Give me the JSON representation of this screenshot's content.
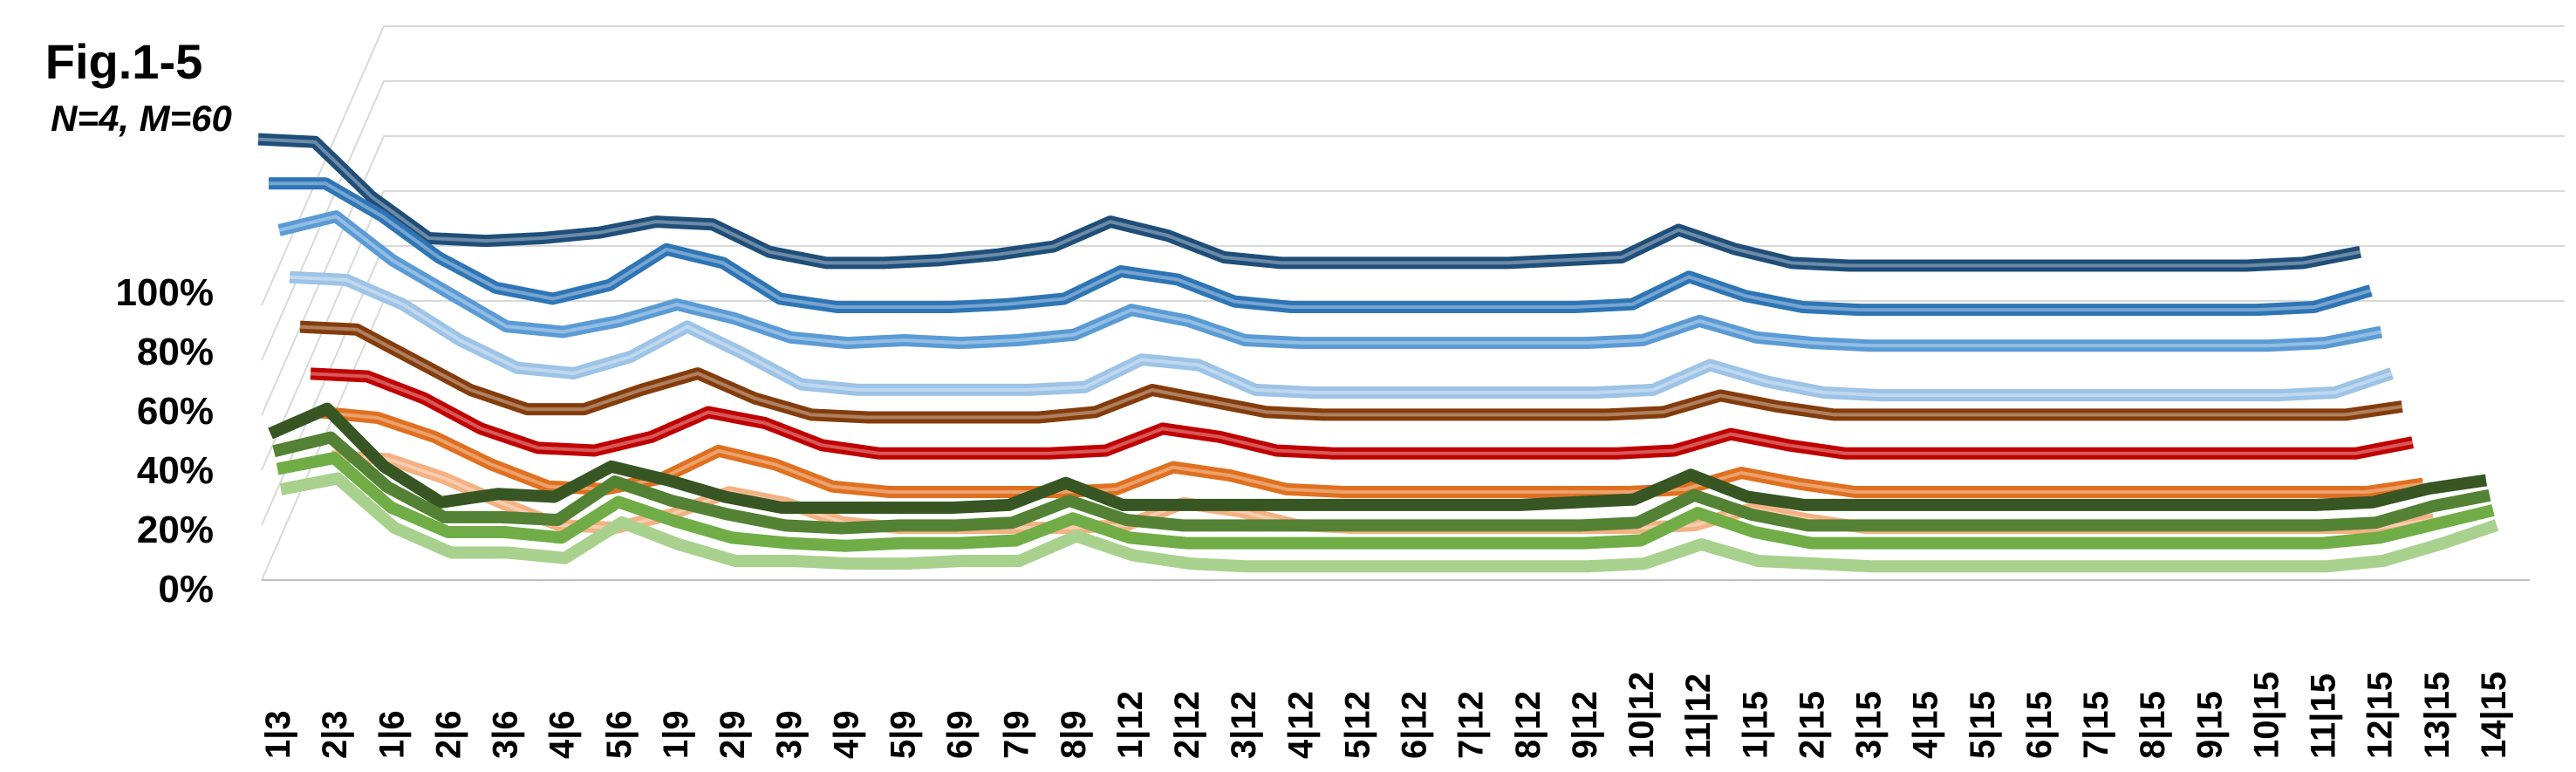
{
  "figure": {
    "title": "Fig.1-5",
    "subtitle": "N=4, M=60"
  },
  "chart_data": {
    "type": "line",
    "style": "3d-line",
    "title": "Fig.1-5",
    "subtitle": "N=4, M=60",
    "xlabel": "",
    "ylabel": "",
    "ylim": [
      0,
      100
    ],
    "yticks": [
      "0%",
      "20%",
      "40%",
      "60%",
      "80%",
      "100%"
    ],
    "grid": true,
    "legend": "none",
    "categories": [
      "1|3",
      "2|3",
      "1|6",
      "2|6",
      "3|6",
      "4|6",
      "5|6",
      "1|9",
      "2|9",
      "3|9",
      "4|9",
      "5|9",
      "6|9",
      "7|9",
      "8|9",
      "1|12",
      "2|12",
      "3|12",
      "4|12",
      "5|12",
      "6|12",
      "7|12",
      "8|12",
      "9|12",
      "10|12",
      "11|12",
      "1|15",
      "2|15",
      "3|15",
      "4|15",
      "5|15",
      "6|15",
      "7|15",
      "8|15",
      "9|15",
      "10|15",
      "11|15",
      "12|15",
      "13|15",
      "14|15"
    ],
    "series": [
      {
        "color": "#1f4e79",
        "values": [
          76,
          75,
          55,
          40,
          39,
          40,
          42,
          46,
          45,
          35,
          31,
          31,
          32,
          34,
          37,
          46,
          41,
          33,
          31,
          31,
          31,
          31,
          31,
          32,
          33,
          43,
          36,
          31,
          30,
          30,
          30,
          30,
          30,
          30,
          30,
          30,
          31,
          35,
          null,
          null
        ]
      },
      {
        "color": "#2e75b6",
        "values": [
          72,
          72,
          60,
          45,
          34,
          30,
          35,
          48,
          43,
          30,
          27,
          27,
          27,
          28,
          30,
          40,
          37,
          29,
          27,
          27,
          27,
          27,
          27,
          27,
          28,
          38,
          31,
          27,
          26,
          26,
          26,
          26,
          26,
          26,
          26,
          26,
          27,
          33,
          null,
          null
        ]
      },
      {
        "color": "#5b9bd5",
        "values": [
          67,
          72,
          56,
          44,
          32,
          30,
          34,
          40,
          35,
          28,
          26,
          27,
          26,
          27,
          29,
          38,
          34,
          27,
          26,
          26,
          26,
          26,
          26,
          26,
          27,
          34,
          28,
          26,
          25,
          25,
          25,
          25,
          25,
          25,
          25,
          25,
          26,
          30,
          null,
          null
        ]
      },
      {
        "color": "#9dc3e6",
        "values": [
          62,
          61,
          52,
          39,
          29,
          27,
          33,
          44,
          34,
          23,
          21,
          21,
          21,
          21,
          22,
          32,
          30,
          21,
          20,
          20,
          20,
          20,
          20,
          20,
          21,
          30,
          24,
          20,
          19,
          19,
          19,
          19,
          19,
          19,
          19,
          19,
          20,
          27,
          null,
          null
        ]
      },
      {
        "color": "#843c0c",
        "values": [
          56,
          55,
          44,
          33,
          26,
          26,
          33,
          39,
          30,
          24,
          23,
          23,
          23,
          23,
          25,
          33,
          29,
          25,
          24,
          24,
          24,
          24,
          24,
          24,
          25,
          31,
          27,
          24,
          24,
          24,
          24,
          24,
          24,
          24,
          24,
          24,
          24,
          27,
          null,
          null
        ]
      },
      {
        "color": "#c00000",
        "values": [
          51,
          50,
          42,
          31,
          24,
          23,
          28,
          37,
          33,
          25,
          22,
          22,
          22,
          22,
          23,
          31,
          28,
          23,
          22,
          22,
          22,
          22,
          22,
          22,
          23,
          29,
          25,
          22,
          22,
          22,
          22,
          22,
          22,
          22,
          22,
          22,
          22,
          26,
          null,
          null
        ]
      },
      {
        "color": "#e07020",
        "values": [
          49,
          47,
          40,
          30,
          22,
          21,
          25,
          35,
          30,
          22,
          20,
          20,
          20,
          20,
          21,
          29,
          26,
          21,
          20,
          20,
          20,
          20,
          20,
          20,
          21,
          27,
          23,
          20,
          20,
          20,
          20,
          20,
          20,
          20,
          20,
          20,
          20,
          23,
          null,
          null
        ]
      },
      {
        "color": "#f4b183",
        "values": [
          45,
          44,
          37,
          28,
          20,
          19,
          24,
          32,
          28,
          21,
          19,
          19,
          19,
          19,
          20,
          28,
          25,
          20,
          19,
          19,
          19,
          19,
          19,
          19,
          20,
          26,
          22,
          19,
          19,
          19,
          19,
          19,
          19,
          19,
          19,
          19,
          19,
          22,
          null,
          null
        ]
      },
      {
        "color": "#375623",
        "values": [
          null,
          null,
          null,
          null,
          null,
          null,
          null,
          null,
          null,
          null,
          null,
          null,
          null,
          null,
          null,
          null,
          null,
          null,
          null,
          null,
          null,
          null,
          null,
          null,
          null,
          null,
          null,
          null,
          null,
          null,
          null,
          null,
          null,
          null,
          null,
          null,
          null,
          null,
          null,
          null
        ]
      }
    ]
  }
}
